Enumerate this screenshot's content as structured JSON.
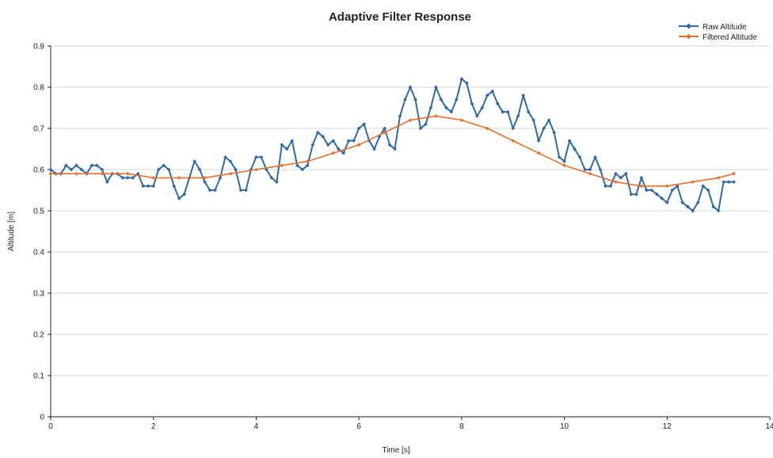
{
  "chart_data": {
    "type": "line",
    "title": "Adaptive Filter Response",
    "xlabel": "Time [s]",
    "ylabel": "Altitude [m]",
    "xlim": [
      0,
      14
    ],
    "ylim": [
      0,
      0.9
    ],
    "x_ticks": [
      "0",
      "2",
      "4",
      "6",
      "8",
      "10",
      "12",
      "14"
    ],
    "y_ticks": [
      "0",
      "0.1",
      "0.2",
      "0.3",
      "0.4",
      "0.5",
      "0.6",
      "0.7",
      "0.8",
      "0.9"
    ],
    "grid": "horizontal",
    "legend_position": "top-right",
    "series": [
      {
        "name": "Raw Altitude",
        "color": "#2f6aa6",
        "marker": "diamond",
        "points": [
          [
            0,
            0.6
          ],
          [
            0.1,
            0.59
          ],
          [
            0.2,
            0.59
          ],
          [
            0.3,
            0.61
          ],
          [
            0.4,
            0.6
          ],
          [
            0.5,
            0.61
          ],
          [
            0.6,
            0.6
          ],
          [
            0.7,
            0.59
          ],
          [
            0.8,
            0.61
          ],
          [
            0.9,
            0.61
          ],
          [
            1.0,
            0.6
          ],
          [
            1.1,
            0.57
          ],
          [
            1.2,
            0.59
          ],
          [
            1.3,
            0.59
          ],
          [
            1.4,
            0.58
          ],
          [
            1.5,
            0.58
          ],
          [
            1.6,
            0.58
          ],
          [
            1.7,
            0.59
          ],
          [
            1.8,
            0.56
          ],
          [
            1.9,
            0.56
          ],
          [
            2.0,
            0.56
          ],
          [
            2.1,
            0.6
          ],
          [
            2.2,
            0.61
          ],
          [
            2.3,
            0.6
          ],
          [
            2.4,
            0.56
          ],
          [
            2.5,
            0.53
          ],
          [
            2.6,
            0.54
          ],
          [
            2.7,
            0.58
          ],
          [
            2.8,
            0.62
          ],
          [
            2.9,
            0.6
          ],
          [
            3.0,
            0.57
          ],
          [
            3.1,
            0.55
          ],
          [
            3.2,
            0.55
          ],
          [
            3.3,
            0.58
          ],
          [
            3.4,
            0.63
          ],
          [
            3.5,
            0.62
          ],
          [
            3.6,
            0.6
          ],
          [
            3.7,
            0.55
          ],
          [
            3.8,
            0.55
          ],
          [
            3.9,
            0.6
          ],
          [
            4.0,
            0.63
          ],
          [
            4.1,
            0.63
          ],
          [
            4.2,
            0.6
          ],
          [
            4.3,
            0.58
          ],
          [
            4.4,
            0.57
          ],
          [
            4.5,
            0.66
          ],
          [
            4.6,
            0.65
          ],
          [
            4.7,
            0.67
          ],
          [
            4.8,
            0.61
          ],
          [
            4.9,
            0.6
          ],
          [
            5.0,
            0.61
          ],
          [
            5.1,
            0.66
          ],
          [
            5.2,
            0.69
          ],
          [
            5.3,
            0.68
          ],
          [
            5.4,
            0.66
          ],
          [
            5.5,
            0.67
          ],
          [
            5.6,
            0.65
          ],
          [
            5.7,
            0.64
          ],
          [
            5.8,
            0.67
          ],
          [
            5.9,
            0.67
          ],
          [
            6.0,
            0.7
          ],
          [
            6.1,
            0.71
          ],
          [
            6.2,
            0.67
          ],
          [
            6.3,
            0.65
          ],
          [
            6.4,
            0.68
          ],
          [
            6.5,
            0.7
          ],
          [
            6.6,
            0.66
          ],
          [
            6.7,
            0.65
          ],
          [
            6.8,
            0.73
          ],
          [
            6.9,
            0.77
          ],
          [
            7.0,
            0.8
          ],
          [
            7.1,
            0.77
          ],
          [
            7.2,
            0.7
          ],
          [
            7.3,
            0.71
          ],
          [
            7.4,
            0.75
          ],
          [
            7.5,
            0.8
          ],
          [
            7.6,
            0.77
          ],
          [
            7.7,
            0.75
          ],
          [
            7.8,
            0.74
          ],
          [
            7.9,
            0.77
          ],
          [
            8.0,
            0.82
          ],
          [
            8.1,
            0.81
          ],
          [
            8.2,
            0.76
          ],
          [
            8.3,
            0.73
          ],
          [
            8.4,
            0.75
          ],
          [
            8.5,
            0.78
          ],
          [
            8.6,
            0.79
          ],
          [
            8.7,
            0.76
          ],
          [
            8.8,
            0.74
          ],
          [
            8.9,
            0.74
          ],
          [
            9.0,
            0.7
          ],
          [
            9.1,
            0.73
          ],
          [
            9.2,
            0.78
          ],
          [
            9.3,
            0.74
          ],
          [
            9.4,
            0.72
          ],
          [
            9.5,
            0.67
          ],
          [
            9.6,
            0.7
          ],
          [
            9.7,
            0.72
          ],
          [
            9.8,
            0.69
          ],
          [
            9.9,
            0.63
          ],
          [
            10.0,
            0.62
          ],
          [
            10.1,
            0.67
          ],
          [
            10.2,
            0.65
          ],
          [
            10.3,
            0.63
          ],
          [
            10.4,
            0.6
          ],
          [
            10.5,
            0.6
          ],
          [
            10.6,
            0.63
          ],
          [
            10.7,
            0.6
          ],
          [
            10.8,
            0.56
          ],
          [
            10.9,
            0.56
          ],
          [
            11.0,
            0.59
          ],
          [
            11.1,
            0.58
          ],
          [
            11.2,
            0.59
          ],
          [
            11.3,
            0.54
          ],
          [
            11.4,
            0.54
          ],
          [
            11.5,
            0.58
          ],
          [
            11.6,
            0.55
          ],
          [
            11.7,
            0.55
          ],
          [
            11.8,
            0.54
          ],
          [
            11.9,
            0.53
          ],
          [
            12.0,
            0.52
          ],
          [
            12.1,
            0.55
          ],
          [
            12.2,
            0.56
          ],
          [
            12.3,
            0.52
          ],
          [
            12.4,
            0.51
          ],
          [
            12.5,
            0.5
          ],
          [
            12.6,
            0.52
          ],
          [
            12.7,
            0.56
          ],
          [
            12.8,
            0.55
          ],
          [
            12.9,
            0.51
          ],
          [
            13.0,
            0.5
          ],
          [
            13.1,
            0.57
          ],
          [
            13.2,
            0.57
          ],
          [
            13.3,
            0.57
          ]
        ]
      },
      {
        "name": "Filtered Altitude",
        "color": "#e8702a",
        "marker": "diamond",
        "points": [
          [
            0,
            0.59
          ],
          [
            0.5,
            0.59
          ],
          [
            1.0,
            0.59
          ],
          [
            1.5,
            0.59
          ],
          [
            2.0,
            0.58
          ],
          [
            2.5,
            0.58
          ],
          [
            3.0,
            0.58
          ],
          [
            3.5,
            0.59
          ],
          [
            4.0,
            0.6
          ],
          [
            4.5,
            0.61
          ],
          [
            5.0,
            0.62
          ],
          [
            5.5,
            0.64
          ],
          [
            6.0,
            0.66
          ],
          [
            6.5,
            0.69
          ],
          [
            7.0,
            0.72
          ],
          [
            7.5,
            0.73
          ],
          [
            8.0,
            0.72
          ],
          [
            8.5,
            0.7
          ],
          [
            9.0,
            0.67
          ],
          [
            9.5,
            0.64
          ],
          [
            10.0,
            0.61
          ],
          [
            10.5,
            0.59
          ],
          [
            11.0,
            0.57
          ],
          [
            11.5,
            0.56
          ],
          [
            12.0,
            0.56
          ],
          [
            12.5,
            0.57
          ],
          [
            13.0,
            0.58
          ],
          [
            13.3,
            0.59
          ]
        ]
      }
    ]
  }
}
